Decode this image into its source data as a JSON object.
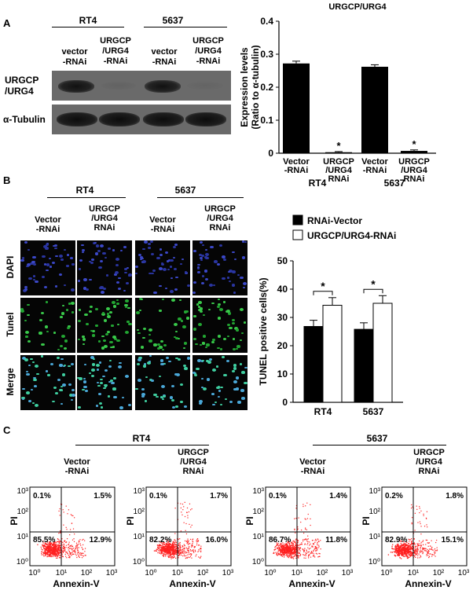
{
  "panelA": {
    "letter": "A",
    "cell_lines": [
      "RT4",
      "5637"
    ],
    "lane_labels": [
      [
        "vector",
        "-RNAi"
      ],
      [
        "URGCP",
        "/URG4",
        "-RNAi"
      ],
      [
        "vector",
        "-RNAi"
      ],
      [
        "URGCP",
        "/URG4",
        "-RNAi"
      ]
    ],
    "row_labels": [
      [
        "URGCP",
        "/URG4"
      ],
      [
        "α-Tubulin"
      ]
    ],
    "chart_data": {
      "type": "bar",
      "title": "URGCP/URG4",
      "ylabel": [
        "Expression levels",
        "(Ratio to α-tubulin)"
      ],
      "ylim": [
        0,
        0.4
      ],
      "yticks": [
        "0",
        "0.1",
        "0.2",
        "0.3",
        "0.4"
      ],
      "categories": [
        [
          "Vector",
          "-RNAi"
        ],
        [
          "URGCP",
          "/URG4",
          "RNAi"
        ],
        [
          "Vector",
          "-RNAi"
        ],
        [
          "URGCP",
          "/URG4",
          "RNAi"
        ]
      ],
      "groups": [
        "RT4",
        "5637"
      ],
      "values": [
        0.272,
        0.003,
        0.262,
        0.007
      ],
      "errors": [
        0.007,
        0.002,
        0.006,
        0.003
      ],
      "significance": [
        "",
        "*",
        "",
        "*"
      ],
      "color": "#000000"
    }
  },
  "panelB": {
    "letter": "B",
    "cell_lines": [
      "RT4",
      "5637"
    ],
    "column_labels": [
      [
        "Vector",
        "-RNAi"
      ],
      [
        "URGCP",
        "/URG4",
        "RNAi"
      ],
      [
        "Vector",
        "-RNAi"
      ],
      [
        "URGCP",
        "/URG4",
        "RNAi"
      ]
    ],
    "row_labels": [
      "DAPI",
      "Tunel",
      "Merge"
    ],
    "chart_data": {
      "type": "bar",
      "ylabel": "TUNEL positive cells(%)",
      "ylim": [
        0,
        50
      ],
      "yticks": [
        "0",
        "10",
        "20",
        "30",
        "40",
        "50"
      ],
      "categories": [
        "RT4",
        "5637"
      ],
      "series": [
        {
          "name": "RNAi-Vector",
          "values": [
            26.8,
            25.8
          ],
          "errors": [
            2.2,
            2.3
          ],
          "color": "#000000"
        },
        {
          "name": "URGCP/URG4-RNAi",
          "values": [
            34.3,
            35.0
          ],
          "errors": [
            2.7,
            2.7
          ],
          "color": "#ffffff"
        }
      ],
      "significance": [
        "*",
        "*"
      ],
      "legend": "top"
    }
  },
  "panelC": {
    "letter": "C",
    "cell_lines": [
      "RT4",
      "5637"
    ],
    "chart_data": [
      {
        "type": "scatter",
        "title": [
          "Vector",
          "-RNAi"
        ],
        "xlabel": "Annexin-V",
        "ylabel": "PI",
        "scale": "log",
        "quadrants": {
          "upper_left": "0.1%",
          "upper_right": "1.5%",
          "lower_left": "85.5%",
          "lower_right": "12.9%"
        }
      },
      {
        "type": "scatter",
        "title": [
          "URGCP",
          "/URG4",
          "RNAi"
        ],
        "xlabel": "Annexin-V",
        "ylabel": "PI",
        "scale": "log",
        "quadrants": {
          "upper_left": "0.1%",
          "upper_right": "1.7%",
          "lower_left": "82.2%",
          "lower_right": "16.0%"
        }
      },
      {
        "type": "scatter",
        "title": [
          "Vector",
          "-RNAi"
        ],
        "xlabel": "Annexin-V",
        "ylabel": "PI",
        "scale": "log",
        "quadrants": {
          "upper_left": "0.1%",
          "upper_right": "1.4%",
          "lower_left": "86.7%",
          "lower_right": "11.8%"
        }
      },
      {
        "type": "scatter",
        "title": [
          "URGCP",
          "/URG4",
          "RNAi"
        ],
        "xlabel": "Annexin-V",
        "ylabel": "PI",
        "scale": "log",
        "quadrants": {
          "upper_left": "0.2%",
          "upper_right": "1.8%",
          "lower_left": "82.9%",
          "lower_right": "15.1%"
        }
      }
    ],
    "ytick_labels": [
      "10⁰",
      "10¹",
      "10²",
      "10³"
    ],
    "xtick_labels": [
      "10⁰",
      "10¹",
      "10²",
      "10³"
    ],
    "dot_color": "#ff2020"
  }
}
